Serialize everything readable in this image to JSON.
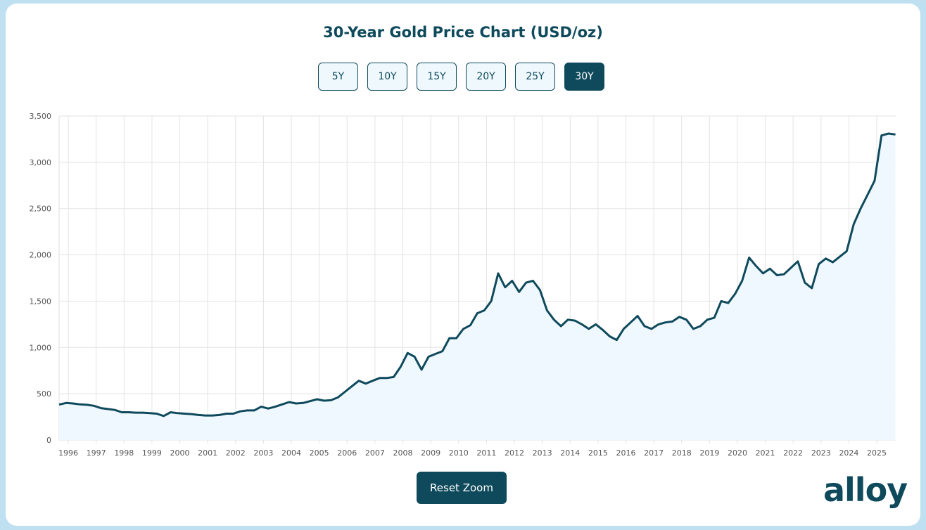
{
  "chart_data": {
    "type": "area",
    "title": "30-Year Gold Price Chart (USD/oz)",
    "xlabel": "",
    "ylabel": "",
    "ylim": [
      0,
      3500
    ],
    "y_ticks": [
      0,
      500,
      1000,
      1500,
      2000,
      2500,
      3000,
      3500
    ],
    "y_tick_labels": [
      "0",
      "500",
      "1,000",
      "1,500",
      "2,000",
      "2,500",
      "3,000",
      "3,500"
    ],
    "x_ticks": [
      "1996",
      "1997",
      "1998",
      "1999",
      "2000",
      "2001",
      "2002",
      "2003",
      "2004",
      "2005",
      "2006",
      "2007",
      "2008",
      "2009",
      "2010",
      "2011",
      "2012",
      "2013",
      "2014",
      "2015",
      "2016",
      "2017",
      "2018",
      "2019",
      "2020",
      "2021",
      "2022",
      "2023",
      "2024",
      "2025"
    ],
    "xlim": [
      1995.67,
      2025.68
    ],
    "x_start": 1995.67,
    "x_step": 0.25,
    "grid": true,
    "series": [
      {
        "name": "Gold Price (USD/oz)",
        "color": "#0f4a5c",
        "fill": "#eef8fe",
        "values": [
          383,
          400,
          395,
          385,
          380,
          370,
          345,
          335,
          325,
          300,
          300,
          295,
          295,
          290,
          285,
          260,
          300,
          290,
          285,
          280,
          270,
          265,
          265,
          270,
          285,
          285,
          310,
          320,
          320,
          360,
          340,
          360,
          385,
          410,
          395,
          400,
          420,
          440,
          425,
          430,
          460,
          520,
          580,
          640,
          610,
          640,
          670,
          670,
          680,
          790,
          940,
          900,
          760,
          900,
          930,
          960,
          1100,
          1100,
          1200,
          1240,
          1370,
          1400,
          1500,
          1800,
          1650,
          1720,
          1600,
          1700,
          1720,
          1620,
          1400,
          1300,
          1230,
          1300,
          1290,
          1250,
          1200,
          1250,
          1190,
          1120,
          1080,
          1200,
          1270,
          1340,
          1230,
          1200,
          1250,
          1270,
          1280,
          1330,
          1300,
          1200,
          1230,
          1300,
          1320,
          1500,
          1480,
          1580,
          1720,
          1970,
          1880,
          1800,
          1850,
          1780,
          1790,
          1860,
          1930,
          1700,
          1640,
          1900,
          1960,
          1920,
          1980,
          2040,
          2330,
          2500,
          2650,
          2800,
          3290,
          3310,
          3300
        ]
      }
    ]
  },
  "range_buttons": [
    {
      "label": "5Y",
      "active": false
    },
    {
      "label": "10Y",
      "active": false
    },
    {
      "label": "15Y",
      "active": false
    },
    {
      "label": "20Y",
      "active": false
    },
    {
      "label": "25Y",
      "active": false
    },
    {
      "label": "30Y",
      "active": true
    }
  ],
  "reset_label": "Reset Zoom",
  "logo_text": "alloy"
}
